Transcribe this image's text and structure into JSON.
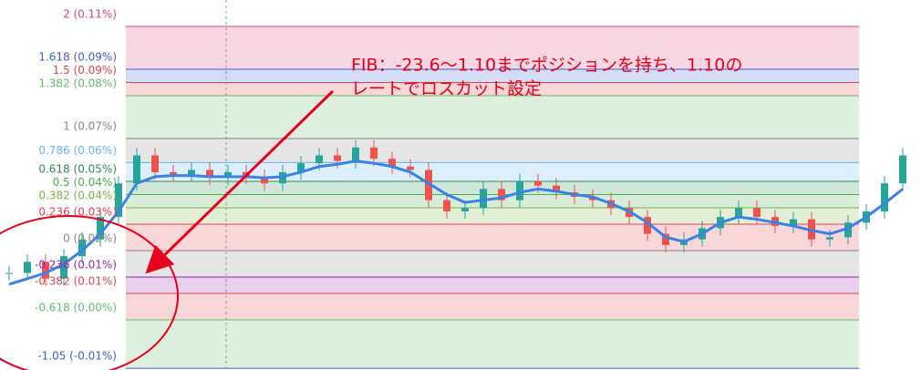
{
  "chart_data": {
    "type": "candlestick",
    "annotation": [
      "FIB：-23.6～1.10までポジションを持ち、1.10の",
      "レートでロスカット設定"
    ],
    "ylim": [
      -1.065,
      2.236
    ],
    "levels": [
      {
        "value": 2,
        "label": "2 (0.11%)",
        "color": "#e0457b"
      },
      {
        "value": 1.618,
        "label": "1.618 (0.09%)",
        "color": "#3d5fd8"
      },
      {
        "value": 1.5,
        "label": "1.5 (0.09%)",
        "color": "#e5434f"
      },
      {
        "value": 1.382,
        "label": "1.382 (0.08%)",
        "color": "#66bb6a"
      },
      {
        "value": 1,
        "label": "1 (0.07%)",
        "color": "#888888"
      },
      {
        "value": 0.786,
        "label": "0.786 (0.06%)",
        "color": "#64b5f6"
      },
      {
        "value": 0.618,
        "label": "0.618 (0.05%)",
        "color": "#2e8b57"
      },
      {
        "value": 0.5,
        "label": "0.5 (0.04%)",
        "color": "#4caf50"
      },
      {
        "value": 0.382,
        "label": "0.382 (0.04%)",
        "color": "#7cb342"
      },
      {
        "value": 0.236,
        "label": "0.236 (0.03%)",
        "color": "#e5434f"
      },
      {
        "value": 0,
        "label": "0 (0.02%)",
        "color": "#888888"
      },
      {
        "value": -0.236,
        "label": "-0.236 (0.01%)",
        "color": "#9c27b0"
      },
      {
        "value": -0.382,
        "label": "-0.382 (0.01%)",
        "color": "#e5434f"
      },
      {
        "value": -0.618,
        "label": "-0.618 (0.00%)",
        "color": "#66bb6a"
      },
      {
        "value": -1.05,
        "label": "-1.05 (-0.01%)",
        "color": "#3d5fd8"
      }
    ],
    "closes": [
      -0.2,
      -0.1,
      -0.25,
      -0.05,
      0.1,
      0.3,
      0.6,
      0.85,
      0.7,
      0.68,
      0.72,
      0.65,
      0.7,
      0.66,
      0.6,
      0.7,
      0.78,
      0.85,
      0.8,
      0.92,
      0.82,
      0.75,
      0.72,
      0.45,
      0.35,
      0.38,
      0.55,
      0.45,
      0.62,
      0.58,
      0.52,
      0.48,
      0.45,
      0.38,
      0.3,
      0.15,
      0.05,
      0.1,
      0.2,
      0.3,
      0.38,
      0.3,
      0.22,
      0.28,
      0.1,
      0.12,
      0.25,
      0.35,
      0.6,
      0.85
    ],
    "ma": [
      -0.3,
      -0.25,
      -0.2,
      -0.12,
      0,
      0.15,
      0.35,
      0.6,
      0.66,
      0.67,
      0.67,
      0.66,
      0.66,
      0.66,
      0.65,
      0.66,
      0.7,
      0.75,
      0.77,
      0.8,
      0.78,
      0.75,
      0.7,
      0.6,
      0.5,
      0.43,
      0.45,
      0.47,
      0.52,
      0.55,
      0.53,
      0.5,
      0.48,
      0.42,
      0.35,
      0.25,
      0.12,
      0.08,
      0.15,
      0.25,
      0.3,
      0.28,
      0.25,
      0.22,
      0.18,
      0.15,
      0.2,
      0.3,
      0.42,
      0.55
    ],
    "ma_color": "#3b82e6",
    "up_color": "#26a69a",
    "down_color": "#ef5350"
  }
}
